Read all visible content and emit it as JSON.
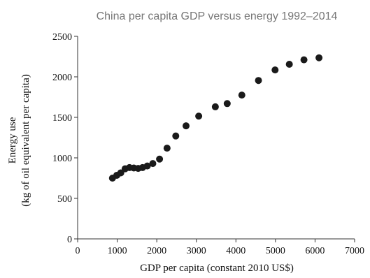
{
  "chart_data": {
    "type": "scatter",
    "title": "China per capita GDP versus energy 1992–2014",
    "xlabel": "GDP per capita (constant 2010 US$)",
    "ylabel_lines": [
      "Energy use",
      "(kg of oil equivalent per capita)"
    ],
    "xlim": [
      0,
      7000
    ],
    "ylim": [
      0,
      2500
    ],
    "x_ticks": [
      "0",
      "1000",
      "2000",
      "3000",
      "4000",
      "5000",
      "6000",
      "7000"
    ],
    "y_ticks": [
      "0",
      "500",
      "1000",
      "1500",
      "2000",
      "2500"
    ],
    "grid": false,
    "legend": "none",
    "marker_color": "#1a1a1a",
    "points": [
      {
        "x": 880,
        "y": 750
      },
      {
        "x": 990,
        "y": 785
      },
      {
        "x": 1090,
        "y": 815
      },
      {
        "x": 1200,
        "y": 865
      },
      {
        "x": 1310,
        "y": 880
      },
      {
        "x": 1420,
        "y": 875
      },
      {
        "x": 1530,
        "y": 870
      },
      {
        "x": 1640,
        "y": 880
      },
      {
        "x": 1760,
        "y": 900
      },
      {
        "x": 1900,
        "y": 930
      },
      {
        "x": 2070,
        "y": 985
      },
      {
        "x": 2260,
        "y": 1120
      },
      {
        "x": 2480,
        "y": 1270
      },
      {
        "x": 2740,
        "y": 1395
      },
      {
        "x": 3060,
        "y": 1515
      },
      {
        "x": 3480,
        "y": 1630
      },
      {
        "x": 3780,
        "y": 1670
      },
      {
        "x": 4150,
        "y": 1775
      },
      {
        "x": 4570,
        "y": 1955
      },
      {
        "x": 4990,
        "y": 2085
      },
      {
        "x": 5350,
        "y": 2155
      },
      {
        "x": 5720,
        "y": 2210
      },
      {
        "x": 6100,
        "y": 2235
      }
    ]
  }
}
